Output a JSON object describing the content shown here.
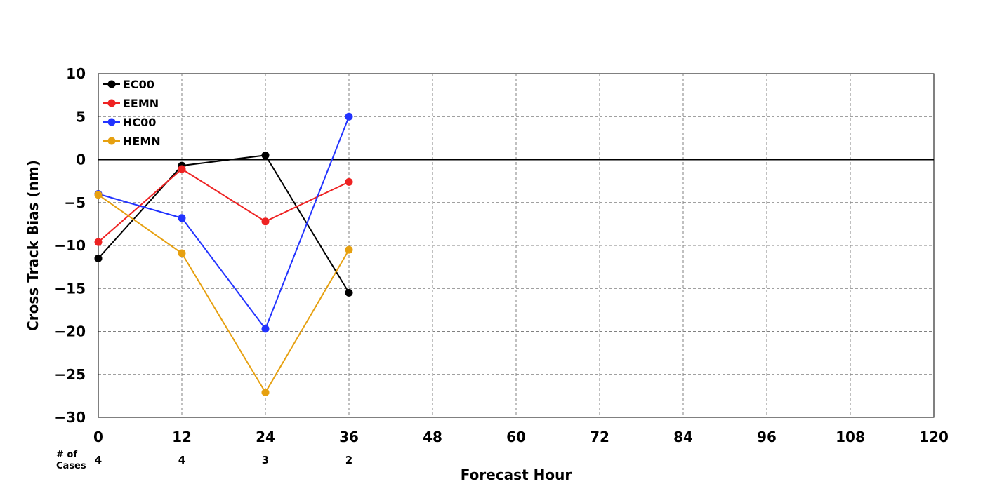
{
  "chart_data": {
    "type": "line",
    "title": "",
    "xlabel": "Forecast Hour",
    "ylabel": "Cross Track Bias (nm)",
    "xlim": [
      0,
      120
    ],
    "ylim": [
      -30,
      10
    ],
    "x_ticks": [
      0,
      12,
      24,
      36,
      48,
      60,
      72,
      84,
      96,
      108,
      120
    ],
    "y_ticks": [
      10,
      5,
      0,
      -5,
      -10,
      -15,
      -20,
      -25,
      -30
    ],
    "y_tick_labels": [
      "10",
      "5",
      "0",
      "−5",
      "−10",
      "−15",
      "−20",
      "−25",
      "−30"
    ],
    "grid": true,
    "zero_line": true,
    "legend_position": "top-left",
    "series": [
      {
        "name": "EC00",
        "color": "#000000",
        "x": [
          0,
          12,
          24,
          36
        ],
        "values": [
          -11.5,
          -0.7,
          0.5,
          -15.5
        ]
      },
      {
        "name": "EEMN",
        "color": "#ee2222",
        "x": [
          0,
          12,
          24,
          36
        ],
        "values": [
          -9.6,
          -1.1,
          -7.2,
          -2.6
        ]
      },
      {
        "name": "HC00",
        "color": "#2233ff",
        "x": [
          0,
          12,
          24,
          36
        ],
        "values": [
          -4.0,
          -6.8,
          -19.7,
          5.0
        ]
      },
      {
        "name": "HEMN",
        "color": "#e6a010",
        "x": [
          0,
          12,
          24,
          36
        ],
        "values": [
          -4.1,
          -10.9,
          -27.1,
          -10.5
        ]
      }
    ],
    "cases": {
      "label_line1": "# of",
      "label_line2": "Cases",
      "x": [
        0,
        12,
        24,
        36
      ],
      "counts": [
        "4",
        "4",
        "3",
        "2"
      ]
    }
  }
}
